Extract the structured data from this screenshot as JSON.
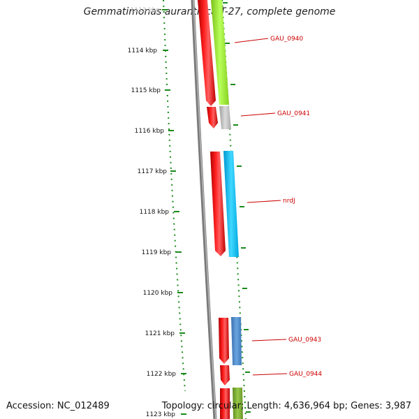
{
  "title": "Gemmatimonas aurantiaca T-27, complete genome",
  "accession_label": "Accession: NC_012489",
  "summary_label": "Topology: circular; Length: 4,636,964 bp; Genes: 3,987",
  "colors": {
    "backbone": "#888888",
    "forward_strand_genes": "#ff0000",
    "tick": "#1a8a1a",
    "gene_label": "#cc0000",
    "GAU_0940": "#a4f542",
    "GAU_0941": "#c0c0c0",
    "nrdJ": "#14c4f6",
    "GAU_0943": "#4a8cd0",
    "GAU_0944": "#7ca832"
  },
  "scale_labels": [
    "1113 kbp",
    "1114 kbp",
    "1115 kbp",
    "1116 kbp",
    "1117 kbp",
    "1118 kbp",
    "1119 kbp",
    "1120 kbp",
    "1121 kbp",
    "1122 kbp",
    "1123 kbp"
  ],
  "gene_labels": [
    "GAU_0940",
    "GAU_0941",
    "nrdJ",
    "GAU_0943",
    "GAU_0944"
  ]
}
